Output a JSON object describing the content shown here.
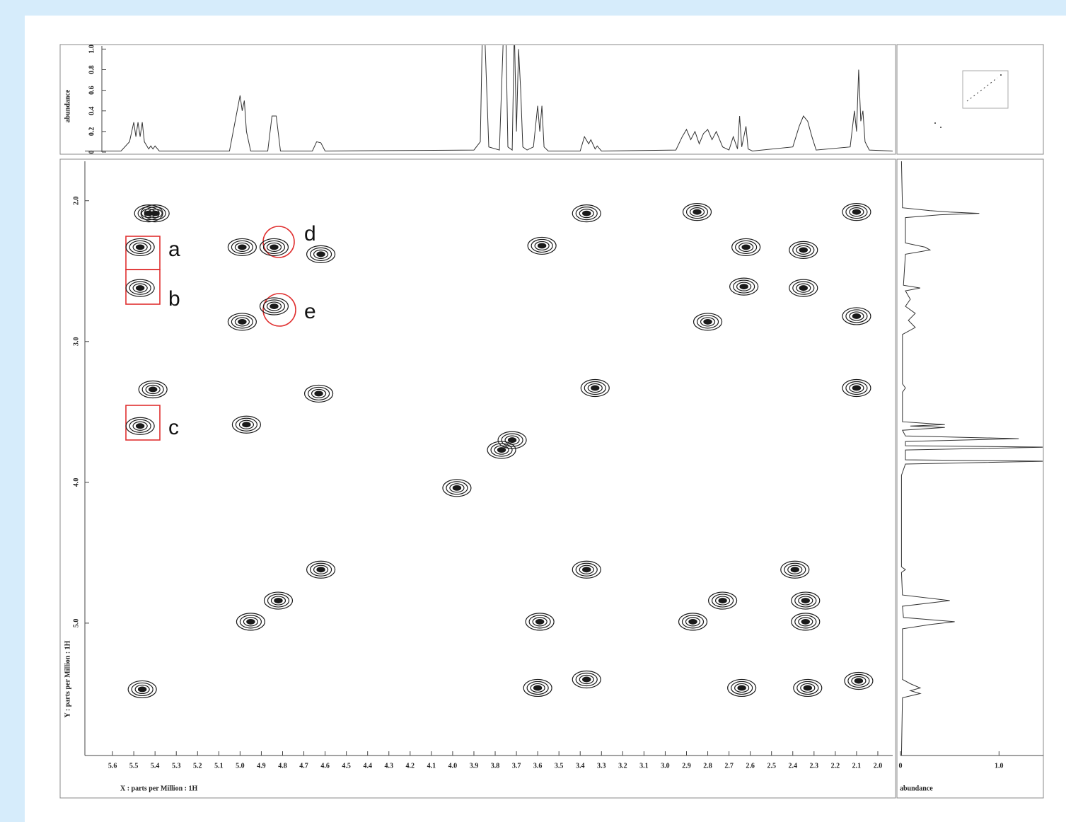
{
  "chart_data": {
    "type": "contour2d",
    "x_label": "X : parts per Million : 1H",
    "y_label": "Y : parts per Million : 1H",
    "xlim": [
      5.73,
      1.93
    ],
    "ylim": [
      1.72,
      5.94
    ],
    "xticks": [
      5.6,
      5.5,
      5.4,
      5.3,
      5.2,
      5.1,
      {
        "value": 5,
        "label": "5.0"
      },
      4.9,
      4.8,
      4.7,
      4.6,
      4.5,
      4.4,
      4.3,
      4.2,
      4.1,
      {
        "value": 4,
        "label": "4.0"
      },
      3.9,
      3.8,
      3.7,
      3.6,
      3.5,
      3.4,
      3.3,
      3.2,
      3.1,
      {
        "value": 3,
        "label": "3.0"
      },
      2.9,
      2.8,
      2.7,
      2.6,
      2.5,
      2.4,
      2.3,
      2.2,
      2.1,
      {
        "value": 2,
        "label": "2.0"
      }
    ],
    "yticks": [
      {
        "value": 2,
        "label": "2.0"
      },
      {
        "value": 3,
        "label": "3.0"
      },
      {
        "value": 4,
        "label": "4.0"
      },
      {
        "value": 5,
        "label": "5.0"
      }
    ],
    "color": "#1a1a1a",
    "peaks": {
      "x": [
        5.43,
        5.4,
        5.47,
        5.47,
        5.41,
        5.47,
        4.99,
        4.84,
        4.62,
        4.99,
        4.84,
        4.97,
        4.63,
        3.37,
        3.58,
        2.85,
        2.62,
        2.35,
        2.1,
        2.8,
        2.63,
        2.35,
        2.1,
        3.33,
        2.1,
        3.77,
        3.72,
        3.98,
        4.62,
        3.37,
        2.39,
        4.95,
        4.82,
        3.59,
        2.87,
        2.34,
        2.73,
        2.34,
        5.46,
        3.6,
        3.37,
        2.64,
        2.33,
        2.09
      ],
      "y": [
        2.09,
        2.09,
        2.33,
        2.62,
        3.34,
        3.6,
        2.33,
        2.33,
        2.38,
        2.86,
        2.75,
        3.59,
        3.37,
        2.09,
        2.32,
        2.08,
        2.33,
        2.35,
        2.08,
        2.86,
        2.61,
        2.62,
        2.82,
        3.33,
        3.33,
        3.77,
        3.7,
        4.04,
        4.62,
        4.62,
        4.62,
        4.99,
        4.84,
        4.99,
        4.99,
        4.99,
        4.84,
        4.84,
        5.47,
        5.46,
        5.4,
        5.46,
        5.46,
        5.41
      ]
    },
    "top": {
      "y_label": "abundance",
      "ylim": [
        0,
        1.03
      ],
      "yticks": [
        0,
        0.2,
        0.4,
        0.6,
        0.8,
        {
          "value": 1,
          "label": "1.0"
        }
      ],
      "x": [
        5.73,
        5.56,
        5.52,
        5.5,
        5.49,
        5.48,
        5.47,
        5.46,
        5.45,
        5.43,
        5.42,
        5.41,
        5.4,
        5.38,
        5.05,
        5.0,
        4.99,
        4.98,
        4.97,
        4.95,
        4.87,
        4.85,
        4.83,
        4.81,
        4.66,
        4.64,
        4.62,
        4.6,
        3.9,
        3.87,
        3.86,
        3.85,
        3.83,
        3.78,
        3.76,
        3.75,
        3.74,
        3.72,
        3.71,
        3.7,
        3.69,
        3.68,
        3.67,
        3.65,
        3.62,
        3.6,
        3.59,
        3.58,
        3.57,
        3.55,
        3.4,
        3.38,
        3.36,
        3.35,
        3.33,
        3.32,
        3.3,
        2.95,
        2.92,
        2.9,
        2.88,
        2.86,
        2.84,
        2.82,
        2.8,
        2.78,
        2.76,
        2.73,
        2.7,
        2.68,
        2.66,
        2.65,
        2.64,
        2.62,
        2.61,
        2.59,
        2.4,
        2.37,
        2.35,
        2.33,
        2.31,
        2.29,
        2.13,
        2.11,
        2.1,
        2.09,
        2.08,
        2.07,
        2.06,
        2.04,
        1.93
      ],
      "values": [
        0.01,
        0.01,
        0.1,
        0.29,
        0.15,
        0.29,
        0.15,
        0.29,
        0.1,
        0.03,
        0.06,
        0.03,
        0.06,
        0.01,
        0.01,
        0.55,
        0.4,
        0.5,
        0.2,
        0.01,
        0.01,
        0.35,
        0.35,
        0.01,
        0.01,
        0.1,
        0.09,
        0.01,
        0.02,
        0.1,
        1.2,
        1.2,
        0.05,
        0.02,
        1.2,
        1.2,
        0.05,
        0.02,
        1.2,
        0.2,
        1.0,
        0.6,
        0.05,
        0.02,
        0.05,
        0.45,
        0.2,
        0.45,
        0.05,
        0.01,
        0.01,
        0.15,
        0.08,
        0.12,
        0.03,
        0.06,
        0.01,
        0.02,
        0.15,
        0.22,
        0.12,
        0.2,
        0.08,
        0.18,
        0.22,
        0.12,
        0.2,
        0.05,
        0.02,
        0.15,
        0.03,
        0.35,
        0.05,
        0.25,
        0.03,
        0.01,
        0.05,
        0.25,
        0.35,
        0.3,
        0.15,
        0.02,
        0.05,
        0.4,
        0.2,
        0.8,
        0.3,
        0.4,
        0.1,
        0.02,
        0.01
      ]
    },
    "side": {
      "x_label": "abundance",
      "xlim": [
        0,
        1.45
      ],
      "xticks": [
        0,
        {
          "value": 1,
          "label": "1.0"
        }
      ],
      "y": [
        1.72,
        2.05,
        2.07,
        2.08,
        2.09,
        2.1,
        2.12,
        2.3,
        2.33,
        2.35,
        2.38,
        2.6,
        2.62,
        2.64,
        2.7,
        2.75,
        2.8,
        2.85,
        2.9,
        2.95,
        3.3,
        3.33,
        3.36,
        3.57,
        3.59,
        3.6,
        3.61,
        3.63,
        3.67,
        3.69,
        3.71,
        3.74,
        3.75,
        3.77,
        3.84,
        3.85,
        3.87,
        3.95,
        4.6,
        4.62,
        4.64,
        4.8,
        4.84,
        4.88,
        4.96,
        4.99,
        5.01,
        5.04,
        5.4,
        5.43,
        5.46,
        5.48,
        5.5,
        5.53,
        5.94
      ],
      "values": [
        0.01,
        0.02,
        0.3,
        0.5,
        0.8,
        0.4,
        0.05,
        0.05,
        0.25,
        0.3,
        0.05,
        0.03,
        0.2,
        0.05,
        0.1,
        0.05,
        0.15,
        0.08,
        0.15,
        0.02,
        0.02,
        0.05,
        0.02,
        0.02,
        0.45,
        0.1,
        0.45,
        0.02,
        0.05,
        1.2,
        0.05,
        0.05,
        1.5,
        0.05,
        0.05,
        1.5,
        0.05,
        0.01,
        0.01,
        0.05,
        0.01,
        0.02,
        0.5,
        0.02,
        0.03,
        0.55,
        0.3,
        0.02,
        0.02,
        0.1,
        0.2,
        0.1,
        0.2,
        0.02,
        0.01
      ]
    },
    "annotations": [
      "a",
      "b",
      "c",
      "d",
      "e"
    ]
  }
}
